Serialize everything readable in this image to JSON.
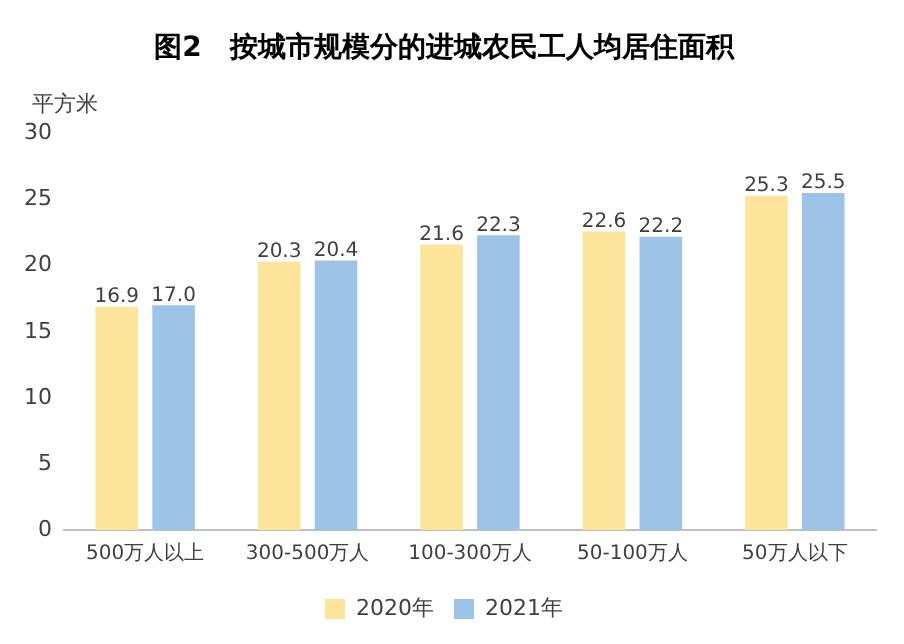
{
  "chart_data": {
    "type": "bar",
    "title": "图2　按城市规模分的进城农民工人均居住面积",
    "ylabel": "平方米",
    "categories": [
      "500万人以上",
      "300-500万人",
      "100-300万人",
      "50-100万人",
      "50万人以下"
    ],
    "series": [
      {
        "name": "2020年",
        "color": "#fde49b",
        "values": [
          16.9,
          20.3,
          21.6,
          22.6,
          25.3
        ],
        "value_labels": [
          "16.9",
          "20.3",
          "21.6",
          "22.6",
          "25.3"
        ]
      },
      {
        "name": "2021年",
        "color": "#9dc3e6",
        "values": [
          17.0,
          20.4,
          22.3,
          22.2,
          25.5
        ],
        "value_labels": [
          "17.0",
          "20.4",
          "22.3",
          "22.2",
          "25.5"
        ]
      }
    ],
    "ylim": [
      0,
      30
    ],
    "yticks": [
      0,
      5,
      10,
      15,
      20,
      25,
      30
    ],
    "grid": false,
    "legend": "bottom"
  }
}
